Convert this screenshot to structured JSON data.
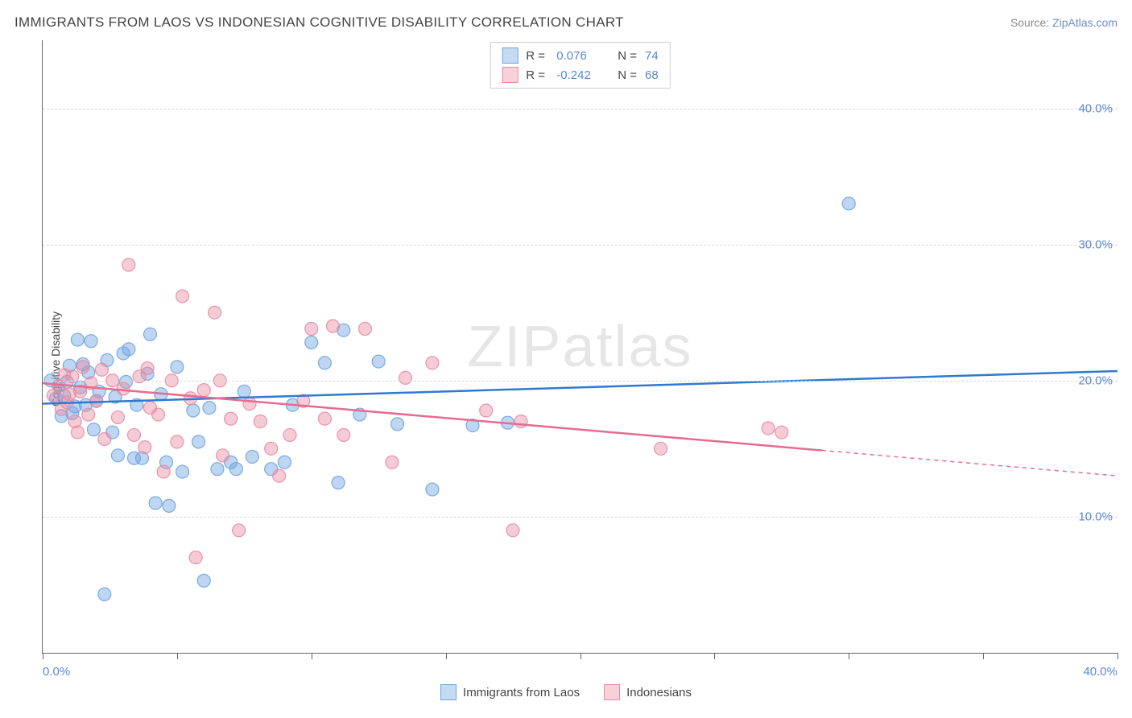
{
  "title": "IMMIGRANTS FROM LAOS VS INDONESIAN COGNITIVE DISABILITY CORRELATION CHART",
  "source_label": "Source: ",
  "source_link_text": "ZipAtlas.com",
  "watermark_text_bold": "ZIP",
  "watermark_text_thin": "atlas",
  "y_axis_label": "Cognitive Disability",
  "chart": {
    "type": "scatter_with_regression",
    "background_color": "#ffffff",
    "grid_color": "#d8d8d8",
    "axis_color": "#666666",
    "xlim": [
      0,
      40
    ],
    "ylim": [
      0,
      45
    ],
    "x_tick_positions": [
      0,
      5,
      10,
      15,
      20,
      25,
      30,
      35,
      40
    ],
    "x_tick_labels": {
      "0": "0.0%",
      "40": "40.0%"
    },
    "y_gridlines": [
      10,
      20,
      30,
      40
    ],
    "y_tick_labels": {
      "10": "10.0%",
      "20": "20.0%",
      "30": "30.0%",
      "40": "40.0%"
    },
    "marker_radius": 8,
    "marker_fill_opacity": 0.45,
    "marker_stroke_opacity": 0.9,
    "marker_stroke_width": 1.2,
    "line_width": 2.5,
    "series": [
      {
        "id": "laos",
        "label": "Immigrants from Laos",
        "color": "#6ea4e0",
        "line_color": "#2f7ad1",
        "r_value": "0.076",
        "n_value": "74",
        "regression": {
          "x1": 0,
          "y1": 18.3,
          "x2": 40,
          "y2": 20.7,
          "dashed_from_x": null
        },
        "points": [
          [
            0.3,
            20.0
          ],
          [
            0.5,
            18.7
          ],
          [
            0.6,
            19.6
          ],
          [
            0.7,
            17.4
          ],
          [
            0.8,
            18.9
          ],
          [
            0.9,
            19.9
          ],
          [
            1.0,
            21.1
          ],
          [
            1.1,
            17.6
          ],
          [
            1.2,
            18.1
          ],
          [
            1.3,
            23.0
          ],
          [
            1.4,
            19.5
          ],
          [
            1.5,
            21.2
          ],
          [
            1.6,
            18.2
          ],
          [
            1.7,
            20.6
          ],
          [
            1.8,
            22.9
          ],
          [
            1.9,
            16.4
          ],
          [
            2.0,
            18.5
          ],
          [
            2.1,
            19.2
          ],
          [
            2.3,
            4.3
          ],
          [
            2.4,
            21.5
          ],
          [
            2.6,
            16.2
          ],
          [
            2.7,
            18.8
          ],
          [
            2.8,
            14.5
          ],
          [
            3.0,
            22.0
          ],
          [
            3.1,
            19.9
          ],
          [
            3.2,
            22.3
          ],
          [
            3.4,
            14.3
          ],
          [
            3.5,
            18.2
          ],
          [
            3.7,
            14.3
          ],
          [
            3.9,
            20.5
          ],
          [
            4.0,
            23.4
          ],
          [
            4.2,
            11.0
          ],
          [
            4.4,
            19.0
          ],
          [
            4.6,
            14.0
          ],
          [
            4.7,
            10.8
          ],
          [
            5.0,
            21.0
          ],
          [
            5.2,
            13.3
          ],
          [
            5.6,
            17.8
          ],
          [
            5.8,
            15.5
          ],
          [
            6.0,
            5.3
          ],
          [
            6.2,
            18.0
          ],
          [
            6.5,
            13.5
          ],
          [
            7.0,
            14.0
          ],
          [
            7.2,
            13.5
          ],
          [
            7.5,
            19.2
          ],
          [
            7.8,
            14.4
          ],
          [
            8.5,
            13.5
          ],
          [
            9.0,
            14.0
          ],
          [
            9.3,
            18.2
          ],
          [
            10.0,
            22.8
          ],
          [
            10.5,
            21.3
          ],
          [
            11.0,
            12.5
          ],
          [
            11.2,
            23.7
          ],
          [
            11.8,
            17.5
          ],
          [
            12.5,
            21.4
          ],
          [
            13.2,
            16.8
          ],
          [
            14.5,
            12.0
          ],
          [
            16.0,
            16.7
          ],
          [
            17.3,
            16.9
          ],
          [
            30.0,
            33.0
          ]
        ]
      },
      {
        "id": "indonesians",
        "label": "Indonesians",
        "color": "#e88ba3",
        "line_color": "#e76b8e",
        "r_value": "-0.242",
        "n_value": "68",
        "regression": {
          "x1": 0,
          "y1": 19.8,
          "x2": 40,
          "y2": 13.0,
          "dashed_from_x": 29
        },
        "points": [
          [
            0.4,
            18.9
          ],
          [
            0.6,
            19.6
          ],
          [
            0.7,
            17.9
          ],
          [
            0.8,
            20.4
          ],
          [
            0.9,
            18.4
          ],
          [
            1.0,
            19.0
          ],
          [
            1.1,
            20.3
          ],
          [
            1.2,
            17.0
          ],
          [
            1.3,
            16.2
          ],
          [
            1.4,
            19.2
          ],
          [
            1.5,
            21.0
          ],
          [
            1.7,
            17.5
          ],
          [
            1.8,
            19.8
          ],
          [
            2.0,
            18.5
          ],
          [
            2.2,
            20.8
          ],
          [
            2.3,
            15.7
          ],
          [
            2.6,
            20.0
          ],
          [
            2.8,
            17.3
          ],
          [
            3.0,
            19.4
          ],
          [
            3.2,
            28.5
          ],
          [
            3.4,
            16.0
          ],
          [
            3.6,
            20.3
          ],
          [
            3.8,
            15.1
          ],
          [
            3.9,
            20.9
          ],
          [
            4.0,
            18.0
          ],
          [
            4.3,
            17.5
          ],
          [
            4.5,
            13.3
          ],
          [
            4.8,
            20.0
          ],
          [
            5.0,
            15.5
          ],
          [
            5.2,
            26.2
          ],
          [
            5.5,
            18.7
          ],
          [
            5.7,
            7.0
          ],
          [
            6.0,
            19.3
          ],
          [
            6.4,
            25.0
          ],
          [
            6.6,
            20.0
          ],
          [
            6.7,
            14.5
          ],
          [
            7.0,
            17.2
          ],
          [
            7.3,
            9.0
          ],
          [
            7.7,
            18.3
          ],
          [
            8.1,
            17.0
          ],
          [
            8.5,
            15.0
          ],
          [
            8.8,
            13.0
          ],
          [
            9.2,
            16.0
          ],
          [
            9.7,
            18.5
          ],
          [
            10.0,
            23.8
          ],
          [
            10.5,
            17.2
          ],
          [
            10.8,
            24.0
          ],
          [
            11.2,
            16.0
          ],
          [
            12.0,
            23.8
          ],
          [
            13.0,
            14.0
          ],
          [
            13.5,
            20.2
          ],
          [
            14.5,
            21.3
          ],
          [
            16.5,
            17.8
          ],
          [
            17.5,
            9.0
          ],
          [
            17.8,
            17.0
          ],
          [
            23.0,
            15.0
          ],
          [
            27.0,
            16.5
          ],
          [
            27.5,
            16.2
          ]
        ]
      }
    ]
  },
  "stats_box": {
    "r_label": "R =",
    "n_label": "N ="
  }
}
